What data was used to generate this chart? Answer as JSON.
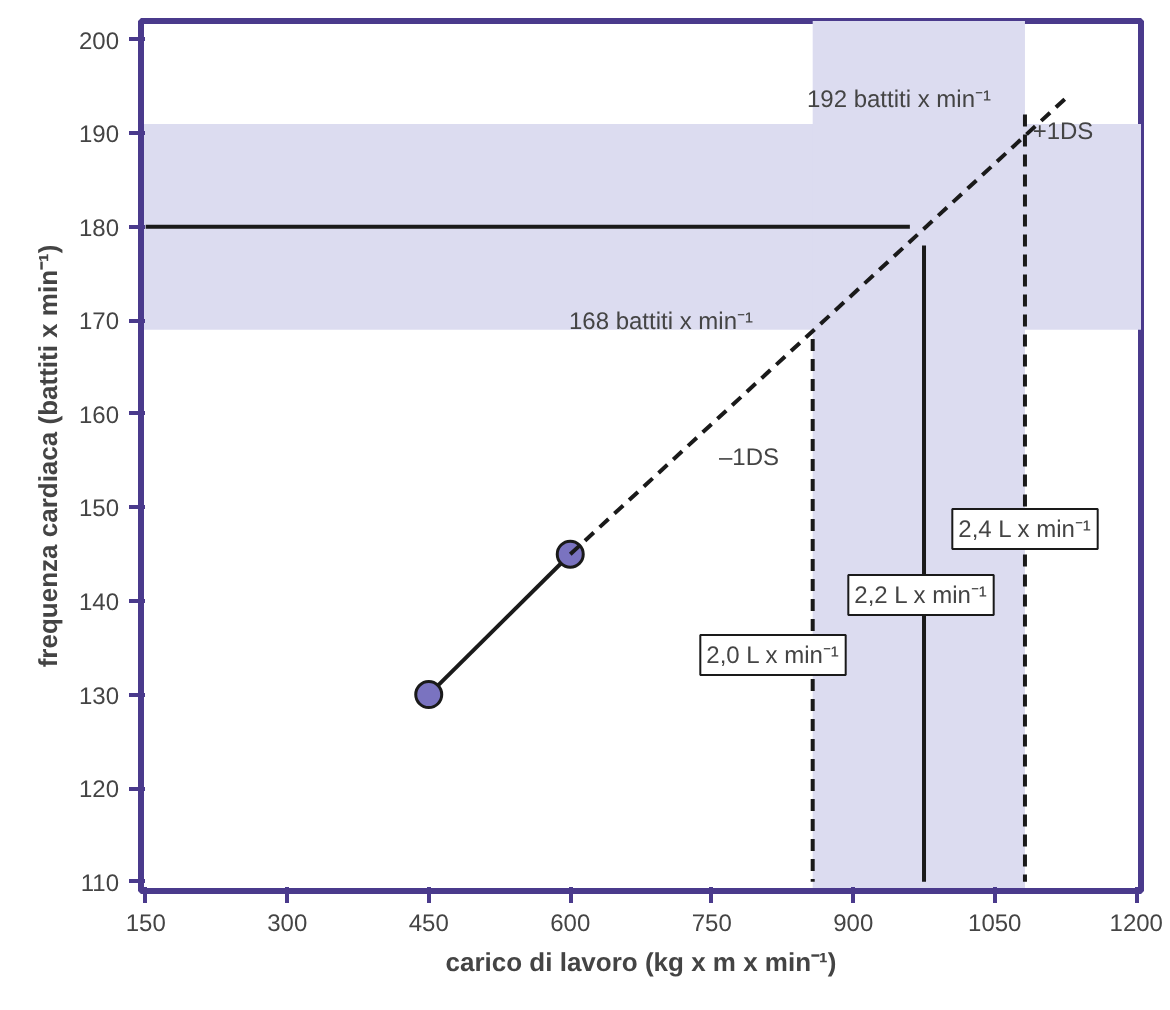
{
  "chart_data": {
    "type": "line",
    "xlabel": "carico di lavoro (kg x m x min⁻¹)",
    "ylabel": "frequenza cardiaca (battiti x min⁻¹)",
    "xlim": [
      145,
      1205
    ],
    "ylim": [
      109,
      202
    ],
    "xticks": [
      150,
      300,
      450,
      600,
      750,
      900,
      1050,
      1200
    ],
    "yticks": [
      110,
      120,
      130,
      140,
      150,
      160,
      170,
      180,
      190,
      200
    ],
    "grid": false,
    "series": [
      {
        "x": [
          450,
          600
        ],
        "values": [
          130,
          145
        ],
        "color": "#1a1a1a",
        "marker": "circle",
        "line_style": "solid"
      },
      {
        "x": [
          600,
          1128
        ],
        "values": [
          145,
          194
        ],
        "color": "#1a1a1a",
        "marker": "none",
        "line_style": "dashed"
      },
      {
        "x": [
          150,
          960
        ],
        "values": [
          180,
          180
        ],
        "color": "#1a1a1a",
        "marker": "none",
        "line_style": "solid"
      },
      {
        "x": [
          975,
          975
        ],
        "values": [
          178,
          110
        ],
        "color": "#1a1a1a",
        "marker": "none",
        "line_style": "solid"
      },
      {
        "x": [
          857,
          857
        ],
        "values": [
          168,
          110
        ],
        "color": "#1a1a1a",
        "marker": "none",
        "line_style": "dashed"
      },
      {
        "x": [
          1082,
          1082
        ],
        "values": [
          192,
          110
        ],
        "color": "#1a1a1a",
        "marker": "none",
        "line_style": "dashed"
      }
    ],
    "bands": [
      {
        "axis": "y",
        "from": 169,
        "to": 191,
        "color": "#dcdcf0"
      },
      {
        "axis": "x",
        "from": 857,
        "to": 1082,
        "color": "#dcdcf0"
      }
    ],
    "annotations": [
      "192 battiti x min⁻¹",
      "+1DS",
      "168 battiti x min⁻¹",
      "–1DS",
      "2,0 L x min⁻¹",
      "2,2 L x min⁻¹",
      "2,4 L x min⁻¹"
    ]
  }
}
